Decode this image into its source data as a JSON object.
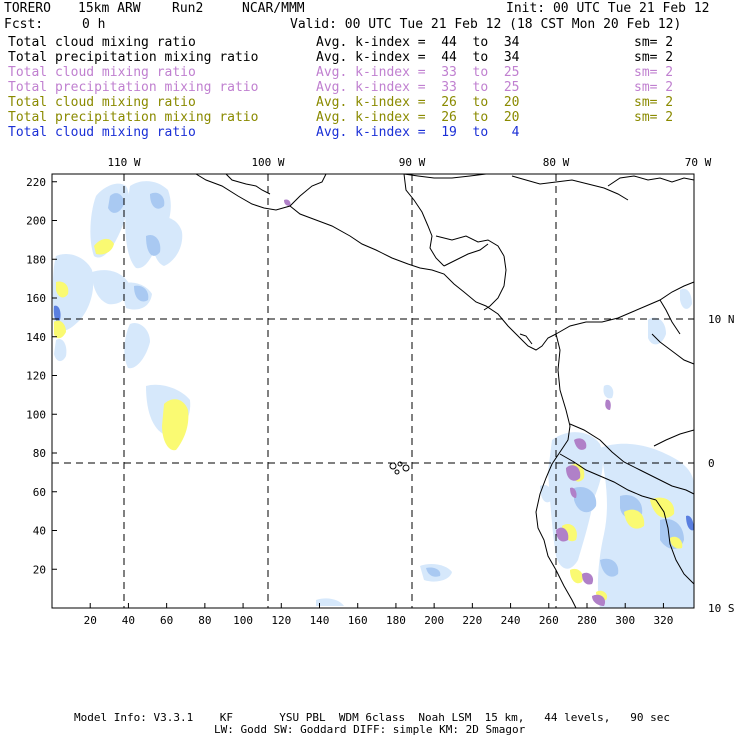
{
  "header": {
    "model": "TORERO",
    "resolution": "15km ARW",
    "run": "Run2",
    "org": "NCAR/MMM",
    "init": "Init: 00 UTC Tue 21 Feb 12",
    "fcst_label": "Fcst:",
    "fcst_value": "0 h",
    "valid": "Valid: 00 UTC Tue 21 Feb 12 (18 CST Mon 20 Feb 12)"
  },
  "legend": [
    {
      "field": "Total cloud mixing ratio",
      "kindex": "Avg. k-index =  44  to  34",
      "sm": "sm= 2",
      "color": "#000000"
    },
    {
      "field": "Total precipitation mixing ratio",
      "kindex": "Avg. k-index =  44  to  34",
      "sm": "sm= 2",
      "color": "#000000"
    },
    {
      "field": "Total cloud mixing ratio",
      "kindex": "Avg. k-index =  33  to  25",
      "sm": "sm= 2",
      "color": "#c080d0"
    },
    {
      "field": "Total precipitation mixing ratio",
      "kindex": "Avg. k-index =  33  to  25",
      "sm": "sm= 2",
      "color": "#c080d0"
    },
    {
      "field": "Total cloud mixing ratio",
      "kindex": "Avg. k-index =  26  to  20",
      "sm": "sm= 2",
      "color": "#8a8a00"
    },
    {
      "field": "Total precipitation mixing ratio",
      "kindex": "Avg. k-index =  26  to  20",
      "sm": "sm= 2",
      "color": "#8a8a00"
    },
    {
      "field": "Total cloud mixing ratio",
      "kindex": "Avg. k-index =  19  to   4",
      "sm": "",
      "color": "#1b2fd6"
    }
  ],
  "map": {
    "top_lon_labels": [
      "110 W",
      "100 W",
      "90 W",
      "80 W",
      "70 W"
    ],
    "right_lat_labels": [
      "10 N",
      "0",
      "10 S"
    ],
    "x_ticks": [
      "20",
      "40",
      "60",
      "80",
      "100",
      "120",
      "140",
      "160",
      "180",
      "200",
      "220",
      "240",
      "260",
      "280",
      "300",
      "320"
    ],
    "y_ticks": [
      "20",
      "40",
      "60",
      "80",
      "100",
      "120",
      "140",
      "160",
      "180",
      "200",
      "220"
    ],
    "colors": {
      "cloud_light": "#cfe4fb",
      "cloud_mid": "#a8cbf3",
      "cloud_dark": "#5a7fe0",
      "yellow": "#fcfc7a",
      "purple": "#a878c0"
    }
  },
  "footer": {
    "line1": "Model Info: V3.3.1    KF       YSU PBL  WDM 6class  Noah LSM  15 km,   44 levels,   90 sec",
    "line2": "LW: Godd SW: Goddard DIFF: simple KM: 2D Smagor"
  }
}
